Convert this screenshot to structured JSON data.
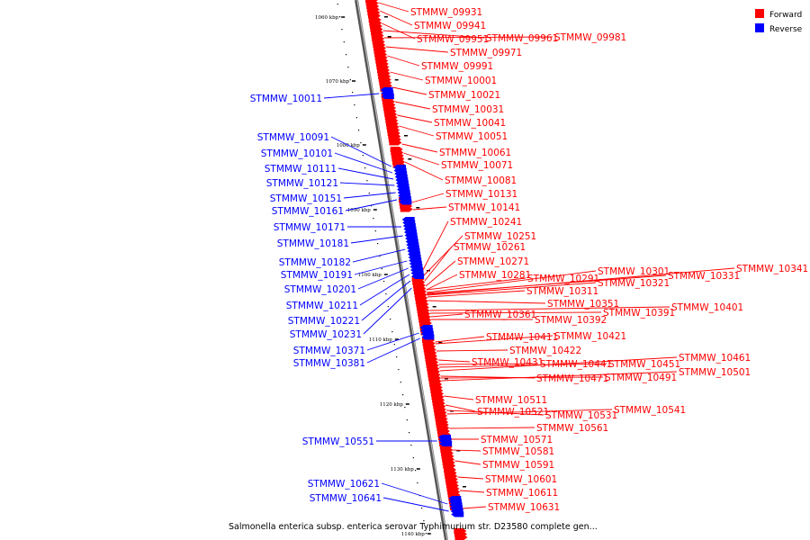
{
  "caption": "Salmonella enterica subsp. enterica serovar Typhimurium str. D23580 complete gen...",
  "legend": [
    {
      "label": "Forward",
      "color": "#ff0000"
    },
    {
      "label": "Reverse",
      "color": "#0000ff"
    }
  ],
  "colors": {
    "forward": "#ff0000",
    "reverse": "#0000ff",
    "backbone": "#888888"
  },
  "scale_ticks": [
    "1060 kbp",
    "1070 kbp",
    "1080 kbp",
    "1090 kbp",
    "1100 kbp",
    "1110 kbp",
    "1120 kbp",
    "1130 kbp",
    "1140 kbp"
  ],
  "forward_genes": [
    "STMMW_09931",
    "STMMW_09941",
    "STMMW_09951",
    "STMMW_09961",
    "STMMW_09981",
    "STMMW_09971",
    "STMMW_09991",
    "STMMW_10001",
    "STMMW_10021",
    "STMMW_10031",
    "STMMW_10041",
    "STMMW_10051",
    "STMMW_10061",
    "STMMW_10071",
    "STMMW_10081",
    "STMMW_10131",
    "STMMW_10141",
    "STMMW_10241",
    "STMMW_10251",
    "STMMW_10261",
    "STMMW_10271",
    "STMMW_10281",
    "STMMW_10291",
    "STMMW_10301",
    "STMMW_10331",
    "STMMW_10341",
    "STMMW_10321",
    "STMMW_10311",
    "STMMW_10351",
    "STMMW_10401",
    "STMMW_10391",
    "STMMW_10361",
    "STMMW_10392",
    "STMMW_10411",
    "STMMW_10421",
    "STMMW_10422",
    "STMMW_10431",
    "STMMW_10441",
    "STMMW_10451",
    "STMMW_10461",
    "STMMW_10471",
    "STMMW_10491",
    "STMMW_10501",
    "STMMW_10511",
    "STMMW_10521",
    "STMMW_10531",
    "STMMW_10541",
    "STMMW_10561",
    "STMMW_10571",
    "STMMW_10581",
    "STMMW_10591",
    "STMMW_10601",
    "STMMW_10611",
    "STMMW_10631"
  ],
  "reverse_genes": [
    "STMMW_10011",
    "STMMW_10091",
    "STMMW_10101",
    "STMMW_10111",
    "STMMW_10121",
    "STMMW_10151",
    "STMMW_10161",
    "STMMW_10171",
    "STMMW_10181",
    "STMMW_10182",
    "STMMW_10191",
    "STMMW_10201",
    "STMMW_10211",
    "STMMW_10221",
    "STMMW_10231",
    "STMMW_10371",
    "STMMW_10381",
    "STMMW_10551",
    "STMMW_10621",
    "STMMW_10641"
  ]
}
